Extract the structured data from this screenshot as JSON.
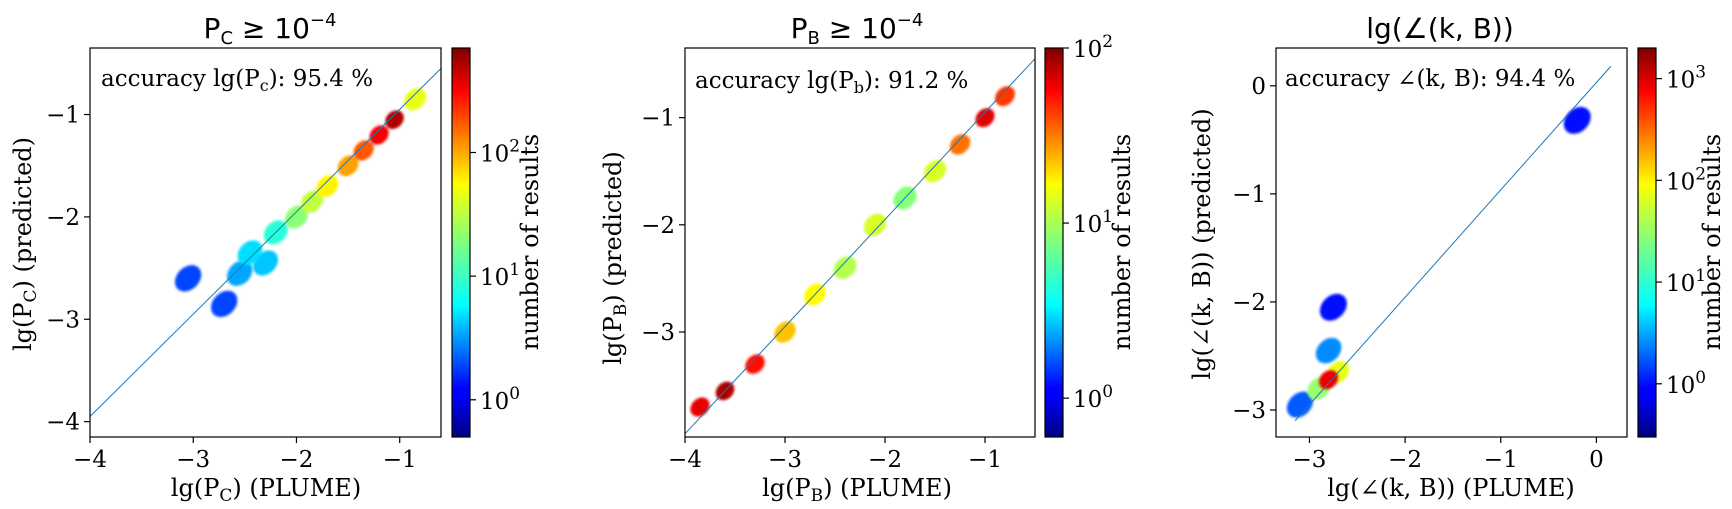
{
  "chart_data": [
    {
      "type": "heatmap",
      "title": "P_C ≥ 10^−4",
      "xlabel": "lg(P_C) (PLUME)",
      "ylabel": "lg(P_C) (predicted)",
      "xlim": [
        -4.0,
        -0.6
      ],
      "ylim": [
        -4.15,
        -0.35
      ],
      "xticks": [
        -4,
        -3,
        -2,
        -1
      ],
      "yticks": [
        -4,
        -3,
        -2,
        -1
      ],
      "xtick_labels": [
        "−4",
        "−3",
        "−2",
        "−1"
      ],
      "ytick_labels": [
        "−4",
        "−3",
        "−2",
        "−1"
      ],
      "annotation": "accuracy lg(P_c): 95.4 %",
      "diagonal": [
        [
          -4.0,
          -3.95
        ],
        [
          -0.6,
          -0.55
        ]
      ],
      "colorbar": {
        "label": "number of results",
        "scale": "log",
        "tick_labels": [
          "10^0",
          "10^1",
          "10^2"
        ],
        "tick_values": [
          1,
          10,
          100
        ],
        "range": [
          0.5,
          700
        ]
      },
      "density_points": [
        {
          "x": -3.05,
          "y": -2.6,
          "count": 2
        },
        {
          "x": -2.7,
          "y": -2.85,
          "count": 2
        },
        {
          "x": -2.55,
          "y": -2.55,
          "count": 4
        },
        {
          "x": -2.45,
          "y": -2.35,
          "count": 6
        },
        {
          "x": -2.3,
          "y": -2.45,
          "count": 5
        },
        {
          "x": -2.2,
          "y": -2.15,
          "count": 10
        },
        {
          "x": -2.0,
          "y": -2.0,
          "count": 20
        },
        {
          "x": -1.85,
          "y": -1.85,
          "count": 30
        },
        {
          "x": -1.7,
          "y": -1.7,
          "count": 50
        },
        {
          "x": -1.5,
          "y": -1.5,
          "count": 90
        },
        {
          "x": -1.35,
          "y": -1.35,
          "count": 150
        },
        {
          "x": -1.2,
          "y": -1.2,
          "count": 300
        },
        {
          "x": -1.05,
          "y": -1.05,
          "count": 500
        },
        {
          "x": -0.85,
          "y": -0.85,
          "count": 40
        }
      ]
    },
    {
      "type": "heatmap",
      "title": "P_B ≥ 10^−4",
      "xlabel": "lg(P_B) (PLUME)",
      "ylabel": "lg(P_B) (predicted)",
      "xlim": [
        -4.0,
        -0.5
      ],
      "ylim": [
        -3.98,
        -0.35
      ],
      "xticks": [
        -4,
        -3,
        -2,
        -1
      ],
      "yticks": [
        -4,
        -3,
        -2,
        -1
      ],
      "xtick_labels": [
        "−4",
        "−3",
        "−2",
        "−1"
      ],
      "ytick_labels": [
        "−4",
        "−3",
        "−2",
        "−1"
      ],
      "annotation": "accuracy lg(P_b): 91.2 %",
      "diagonal": [
        [
          -4.0,
          -3.95
        ],
        [
          -0.5,
          -0.45
        ]
      ],
      "colorbar": {
        "label": "number of results",
        "scale": "log",
        "tick_labels": [
          "10^0",
          "10^1",
          "10^2"
        ],
        "tick_values": [
          1,
          10,
          100
        ],
        "range": [
          0.6,
          100
        ]
      },
      "density_points": [
        {
          "x": -3.85,
          "y": -3.7,
          "count": 60
        },
        {
          "x": -3.6,
          "y": -3.55,
          "count": 80
        },
        {
          "x": -3.3,
          "y": -3.3,
          "count": 50
        },
        {
          "x": -3.0,
          "y": -3.0,
          "count": 20
        },
        {
          "x": -2.7,
          "y": -2.65,
          "count": 15
        },
        {
          "x": -2.4,
          "y": -2.4,
          "count": 10
        },
        {
          "x": -2.1,
          "y": -2.0,
          "count": 12
        },
        {
          "x": -1.8,
          "y": -1.75,
          "count": 8
        },
        {
          "x": -1.5,
          "y": -1.5,
          "count": 12
        },
        {
          "x": -1.25,
          "y": -1.25,
          "count": 30
        },
        {
          "x": -1.0,
          "y": -1.0,
          "count": 60
        },
        {
          "x": -0.8,
          "y": -0.8,
          "count": 40
        }
      ]
    },
    {
      "type": "heatmap",
      "title": "lg(∠(k, B))",
      "xlabel": "lg(∠(k, B)) (PLUME)",
      "ylabel": "lg(∠(k, B)) (predicted)",
      "xlim": [
        -3.35,
        0.32
      ],
      "ylim": [
        -3.25,
        0.35
      ],
      "xticks": [
        -3,
        -2,
        -1,
        0
      ],
      "yticks": [
        -3,
        -2,
        -1,
        0
      ],
      "xtick_labels": [
        "−3",
        "−2",
        "−1",
        "0"
      ],
      "ytick_labels": [
        "−3",
        "−2",
        "−1",
        "0"
      ],
      "annotation": "accuracy ∠(k, B): 94.4 %",
      "diagonal": [
        [
          -3.15,
          -3.1
        ],
        [
          0.15,
          0.18
        ]
      ],
      "colorbar": {
        "label": "number of results",
        "scale": "log",
        "tick_labels": [
          "10^0",
          "10^1",
          "10^2",
          "10^3"
        ],
        "tick_values": [
          1,
          10,
          100,
          1000
        ],
        "range": [
          0.3,
          2000
        ]
      },
      "density_points": [
        {
          "x": -3.1,
          "y": -2.95,
          "count": 2
        },
        {
          "x": -2.9,
          "y": -2.8,
          "count": 30
        },
        {
          "x": -2.8,
          "y": -2.72,
          "count": 800
        },
        {
          "x": -2.7,
          "y": -2.65,
          "count": 60
        },
        {
          "x": -2.8,
          "y": -2.45,
          "count": 3
        },
        {
          "x": -2.75,
          "y": -2.05,
          "count": 1
        },
        {
          "x": -0.2,
          "y": -0.32,
          "count": 1
        }
      ]
    }
  ]
}
